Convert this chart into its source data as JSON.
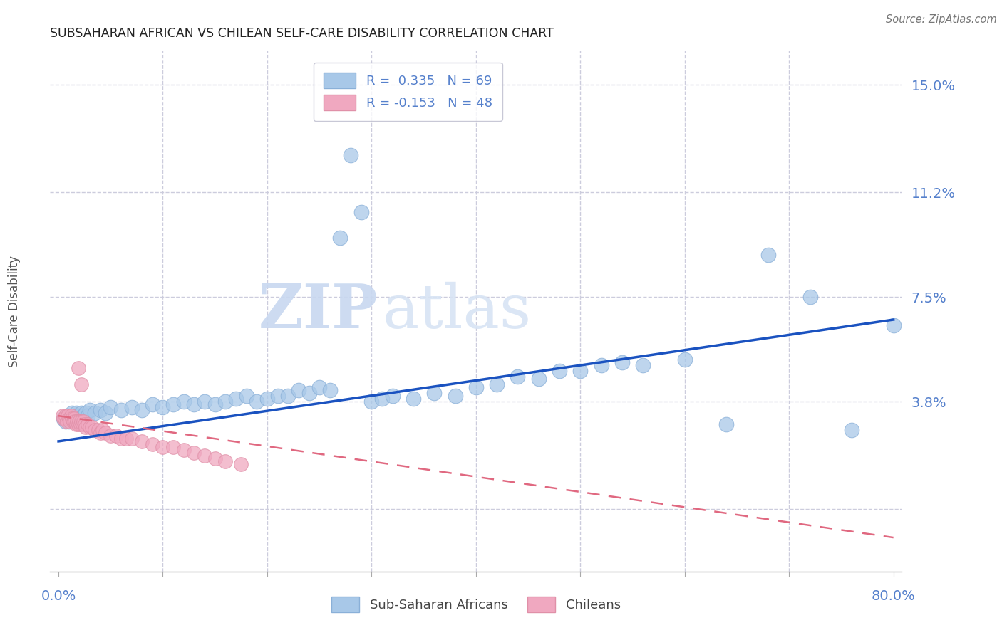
{
  "title": "SUBSAHARAN AFRICAN VS CHILEAN SELF-CARE DISABILITY CORRELATION CHART",
  "source": "Source: ZipAtlas.com",
  "ylabel": "Self-Care Disability",
  "ytick_vals": [
    0.0,
    0.038,
    0.075,
    0.112,
    0.15
  ],
  "ytick_labels": [
    "",
    "3.8%",
    "7.5%",
    "11.2%",
    "15.0%"
  ],
  "xlim": [
    -0.008,
    0.808
  ],
  "ylim": [
    -0.022,
    0.162
  ],
  "blue_R": 0.335,
  "blue_N": 69,
  "pink_R": -0.153,
  "pink_N": 48,
  "blue_color": "#a8c8e8",
  "pink_color": "#f0a8c0",
  "blue_line_color": "#1a52c0",
  "pink_line_color": "#e06880",
  "axis_color": "#5580cc",
  "grid_color": "#ccccdd",
  "blue_line_x": [
    0.0,
    0.8
  ],
  "blue_line_y": [
    0.024,
    0.067
  ],
  "pink_line_x": [
    0.0,
    0.8
  ],
  "pink_line_y": [
    0.033,
    -0.01
  ],
  "blue_scatter_x": [
    0.005,
    0.007,
    0.008,
    0.009,
    0.01,
    0.011,
    0.012,
    0.013,
    0.014,
    0.015,
    0.016,
    0.017,
    0.018,
    0.019,
    0.02,
    0.022,
    0.024,
    0.026,
    0.028,
    0.03,
    0.035,
    0.04,
    0.045,
    0.05,
    0.06,
    0.07,
    0.08,
    0.09,
    0.1,
    0.11,
    0.12,
    0.13,
    0.14,
    0.15,
    0.16,
    0.17,
    0.18,
    0.19,
    0.2,
    0.21,
    0.22,
    0.23,
    0.24,
    0.25,
    0.26,
    0.27,
    0.28,
    0.29,
    0.3,
    0.31,
    0.32,
    0.34,
    0.36,
    0.38,
    0.4,
    0.42,
    0.44,
    0.46,
    0.48,
    0.5,
    0.52,
    0.54,
    0.56,
    0.6,
    0.64,
    0.68,
    0.72,
    0.76,
    0.8
  ],
  "blue_scatter_y": [
    0.032,
    0.031,
    0.033,
    0.032,
    0.031,
    0.033,
    0.032,
    0.034,
    0.031,
    0.033,
    0.032,
    0.034,
    0.033,
    0.032,
    0.033,
    0.034,
    0.033,
    0.034,
    0.033,
    0.035,
    0.034,
    0.035,
    0.034,
    0.036,
    0.035,
    0.036,
    0.035,
    0.037,
    0.036,
    0.037,
    0.038,
    0.037,
    0.038,
    0.037,
    0.038,
    0.039,
    0.04,
    0.038,
    0.039,
    0.04,
    0.04,
    0.042,
    0.041,
    0.043,
    0.042,
    0.096,
    0.125,
    0.105,
    0.038,
    0.039,
    0.04,
    0.039,
    0.041,
    0.04,
    0.043,
    0.044,
    0.047,
    0.046,
    0.049,
    0.049,
    0.051,
    0.052,
    0.051,
    0.053,
    0.03,
    0.09,
    0.075,
    0.028,
    0.065
  ],
  "pink_scatter_x": [
    0.004,
    0.005,
    0.006,
    0.007,
    0.008,
    0.009,
    0.01,
    0.011,
    0.012,
    0.013,
    0.014,
    0.015,
    0.016,
    0.017,
    0.018,
    0.019,
    0.02,
    0.021,
    0.022,
    0.023,
    0.024,
    0.025,
    0.026,
    0.028,
    0.03,
    0.032,
    0.035,
    0.038,
    0.04,
    0.042,
    0.045,
    0.05,
    0.055,
    0.06,
    0.065,
    0.07,
    0.08,
    0.09,
    0.1,
    0.11,
    0.12,
    0.13,
    0.14,
    0.15,
    0.16,
    0.175,
    0.019,
    0.022
  ],
  "pink_scatter_y": [
    0.033,
    0.032,
    0.032,
    0.033,
    0.031,
    0.033,
    0.032,
    0.031,
    0.033,
    0.032,
    0.031,
    0.032,
    0.031,
    0.03,
    0.031,
    0.03,
    0.031,
    0.03,
    0.031,
    0.03,
    0.031,
    0.03,
    0.029,
    0.03,
    0.029,
    0.029,
    0.028,
    0.028,
    0.027,
    0.028,
    0.027,
    0.026,
    0.026,
    0.025,
    0.025,
    0.025,
    0.024,
    0.023,
    0.022,
    0.022,
    0.021,
    0.02,
    0.019,
    0.018,
    0.017,
    0.016,
    0.05,
    0.044
  ],
  "watermark_text": "ZIPatlas",
  "watermark_color": "#dde8f8"
}
